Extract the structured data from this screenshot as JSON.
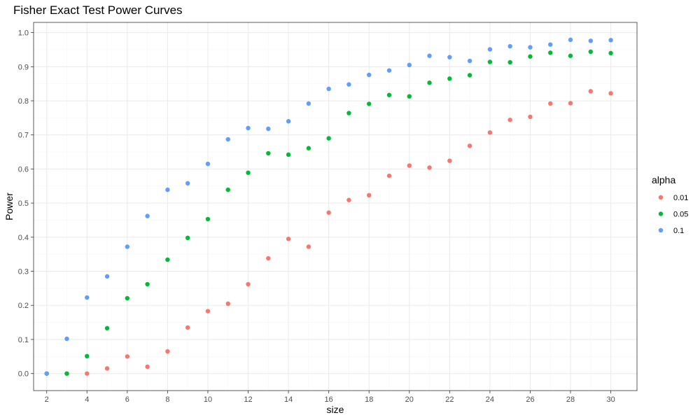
{
  "chart_data": {
    "type": "scatter",
    "title": "Fisher Exact Test Power Curves",
    "xlabel": "size",
    "ylabel": "Power",
    "xlim": [
      1.35,
      31.3
    ],
    "ylim": [
      -0.05,
      1.03
    ],
    "x_ticks": [
      2,
      4,
      6,
      8,
      10,
      12,
      14,
      16,
      18,
      20,
      22,
      24,
      26,
      28,
      30
    ],
    "y_ticks": [
      0.0,
      0.1,
      0.2,
      0.3,
      0.4,
      0.5,
      0.6,
      0.7,
      0.8,
      0.9,
      1.0
    ],
    "y_tick_labels": [
      "0.0",
      "0.1",
      "0.2",
      "0.3",
      "0.4",
      "0.5",
      "0.6",
      "0.7",
      "0.8",
      "0.9",
      "1.0"
    ],
    "grid": true,
    "legend": {
      "title": "alpha",
      "position": "right"
    },
    "x": [
      2,
      3,
      4,
      5,
      6,
      7,
      8,
      9,
      10,
      11,
      12,
      13,
      14,
      15,
      16,
      17,
      18,
      19,
      20,
      21,
      22,
      23,
      24,
      25,
      26,
      27,
      28,
      29,
      30
    ],
    "series": [
      {
        "name": "0.01",
        "color": "#F8766D",
        "values": [
          0.0,
          0.0,
          0.0,
          0.015,
          0.05,
          0.02,
          0.065,
          0.135,
          0.183,
          0.205,
          0.262,
          0.338,
          0.395,
          0.372,
          0.472,
          0.509,
          0.523,
          0.58,
          0.61,
          0.604,
          0.624,
          0.668,
          0.707,
          0.744,
          0.753,
          0.792,
          0.793,
          0.828,
          0.822
        ]
      },
      {
        "name": "0.05",
        "color": "#00BA38",
        "values": [
          0.0,
          0.0,
          0.051,
          0.133,
          0.221,
          0.262,
          0.334,
          0.398,
          0.453,
          0.539,
          0.589,
          0.646,
          0.642,
          0.661,
          0.69,
          0.764,
          0.791,
          0.817,
          0.813,
          0.853,
          0.865,
          0.875,
          0.914,
          0.913,
          0.93,
          0.941,
          0.932,
          0.944,
          0.94
        ]
      },
      {
        "name": "0.1",
        "color": "#619CFF",
        "values": [
          0.0,
          0.102,
          0.223,
          0.285,
          0.372,
          0.462,
          0.539,
          0.558,
          0.615,
          0.687,
          0.72,
          0.718,
          0.74,
          0.792,
          0.835,
          0.848,
          0.876,
          0.889,
          0.905,
          0.932,
          0.928,
          0.917,
          0.951,
          0.96,
          0.957,
          0.965,
          0.979,
          0.976,
          0.978
        ]
      }
    ]
  }
}
